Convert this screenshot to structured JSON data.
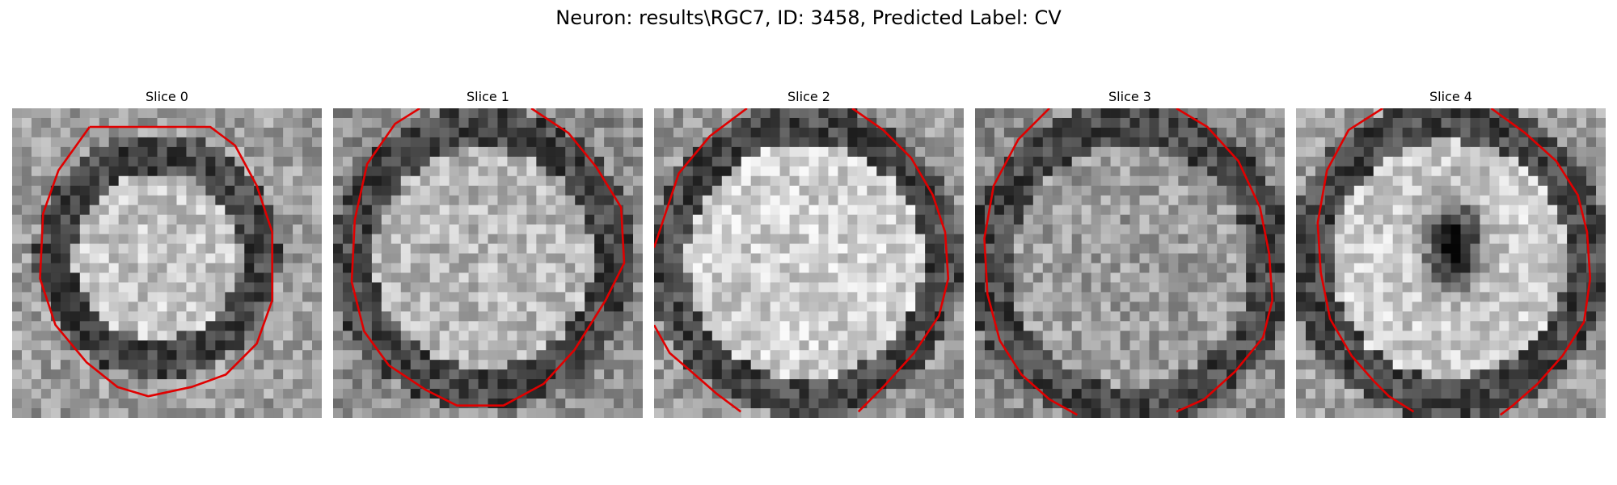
{
  "figure": {
    "title": "Neuron: results\\RGC7, ID: 3458, Predicted Label: CV"
  },
  "panels": [
    {
      "title": "Slice 0",
      "center_intensity": "bright",
      "boundary_contour_color": "#e00000"
    },
    {
      "title": "Slice 1",
      "center_intensity": "bright",
      "boundary_contour_color": "#e00000"
    },
    {
      "title": "Slice 2",
      "center_intensity": "bright",
      "boundary_contour_color": "#e00000"
    },
    {
      "title": "Slice 3",
      "center_intensity": "medium",
      "boundary_contour_color": "#e00000"
    },
    {
      "title": "Slice 4",
      "center_intensity": "dark nucleus",
      "boundary_contour_color": "#e00000"
    }
  ],
  "colors": {
    "background": "#ffffff",
    "contour": "#e00000",
    "colormap": "grayscale"
  }
}
